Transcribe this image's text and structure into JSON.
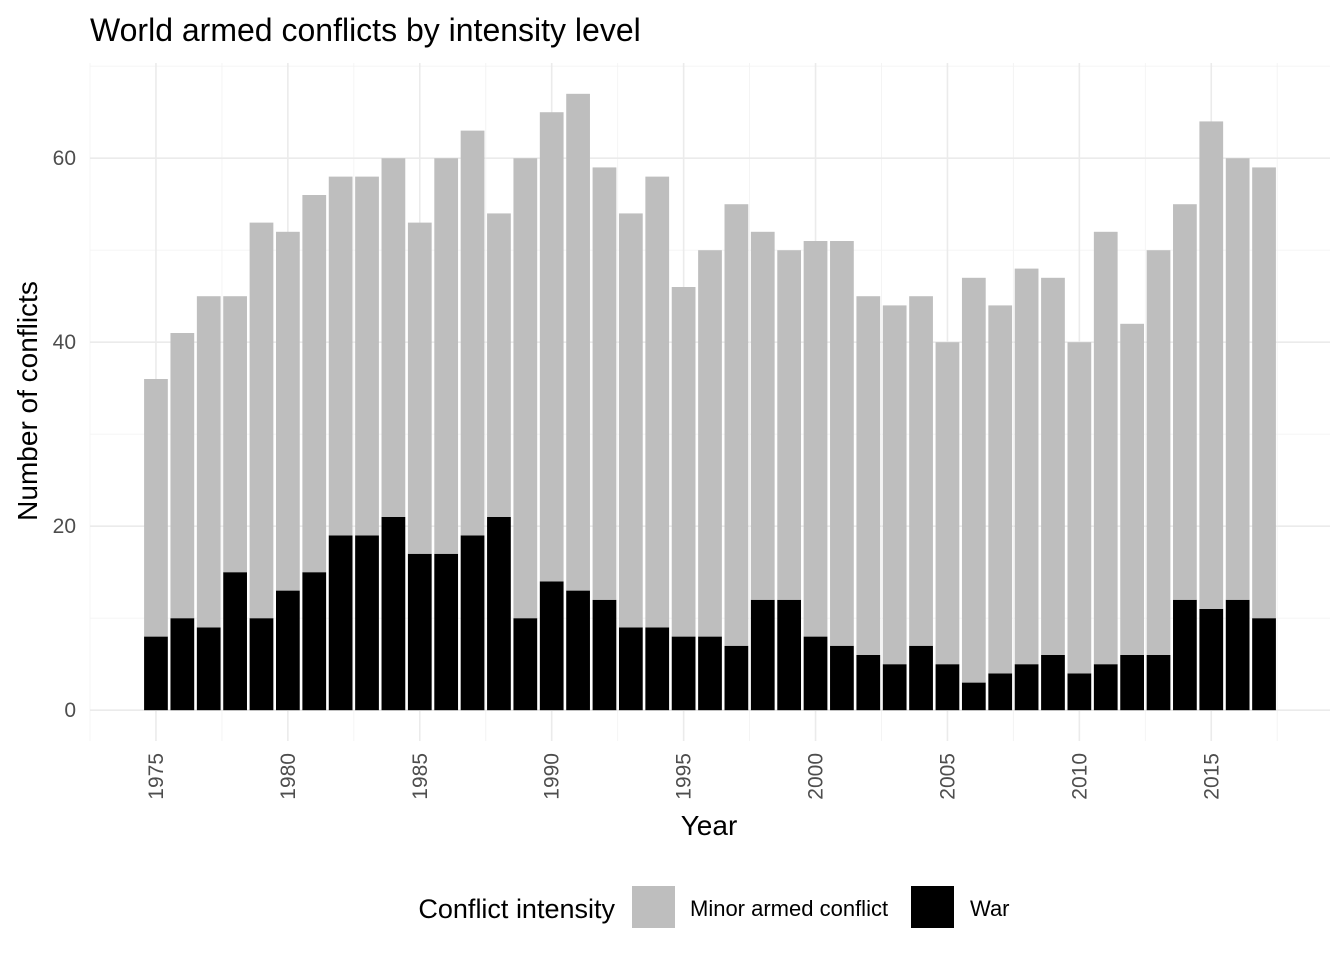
{
  "chart_data": {
    "type": "bar",
    "stacked": true,
    "title": "World armed conflicts by intensity level",
    "xlabel": "Year",
    "ylabel": "Number of conflicts",
    "x": [
      1975,
      1976,
      1977,
      1978,
      1979,
      1980,
      1981,
      1982,
      1983,
      1984,
      1985,
      1986,
      1987,
      1988,
      1989,
      1990,
      1991,
      1992,
      1993,
      1994,
      1995,
      1996,
      1997,
      1998,
      1999,
      2000,
      2001,
      2002,
      2003,
      2004,
      2005,
      2006,
      2007,
      2008,
      2009,
      2010,
      2011,
      2012,
      2013,
      2014,
      2015,
      2016,
      2017
    ],
    "series": [
      {
        "name": "Minor armed conflict",
        "color": "#bebebe",
        "values": [
          28,
          31,
          36,
          30,
          43,
          39,
          41,
          39,
          39,
          39,
          36,
          43,
          44,
          33,
          50,
          51,
          54,
          47,
          45,
          49,
          38,
          42,
          48,
          40,
          38,
          43,
          44,
          39,
          39,
          38,
          35,
          44,
          40,
          43,
          41,
          36,
          47,
          36,
          44,
          43,
          53,
          48,
          49
        ]
      },
      {
        "name": "War",
        "color": "#000000",
        "values": [
          8,
          10,
          9,
          15,
          10,
          13,
          15,
          19,
          19,
          21,
          17,
          17,
          19,
          21,
          10,
          14,
          13,
          12,
          9,
          9,
          8,
          8,
          7,
          12,
          12,
          8,
          7,
          6,
          5,
          7,
          5,
          3,
          4,
          5,
          6,
          4,
          5,
          6,
          6,
          12,
          11,
          12,
          10
        ]
      }
    ],
    "xlim": [
      1972.5,
      2019.5
    ],
    "ylim": [
      -3.35,
      70.35
    ],
    "x_ticks": [
      1975,
      1980,
      1985,
      1990,
      1995,
      2000,
      2005,
      2010,
      2015
    ],
    "y_ticks": [
      0,
      20,
      40,
      60
    ],
    "grid": true,
    "legend": {
      "title": "Conflict intensity",
      "position": "bottom"
    }
  }
}
